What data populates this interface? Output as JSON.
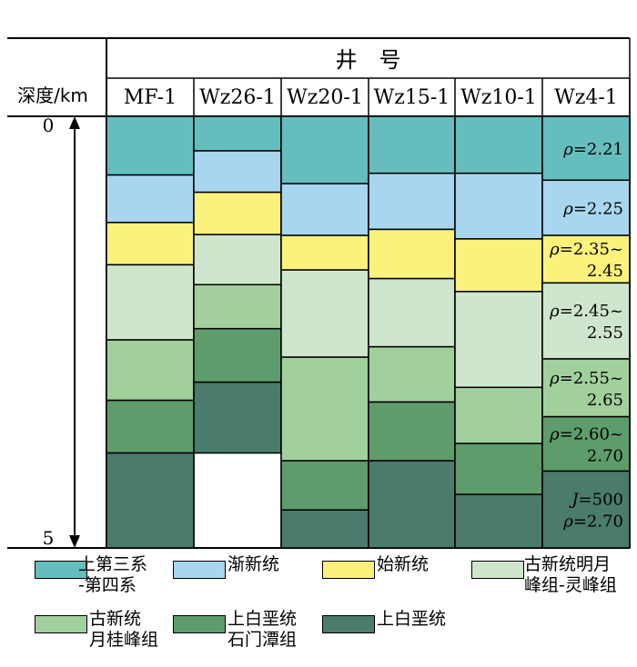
{
  "chart_data": {
    "type": "stacked-column",
    "header": "井　号",
    "depth_label": "深度/km",
    "y_ticks": [
      {
        "value": 0,
        "label": "0"
      },
      {
        "value": 5,
        "label": "5"
      }
    ],
    "ylim": [
      0,
      5
    ],
    "y_inverted": true,
    "units": [
      {
        "id": "u1",
        "name": "上第三系\n-第四系",
        "color": "#66bdbe"
      },
      {
        "id": "u2",
        "name": "渐新统",
        "color": "#a7d6ee"
      },
      {
        "id": "u3",
        "name": "始新统",
        "color": "#fbf27c"
      },
      {
        "id": "u4",
        "name": "古新统明月\n峰组-灵峰组",
        "color": "#d0e5cd"
      },
      {
        "id": "u5",
        "name": "古新统\n月桂峰组",
        "color": "#a1d09d"
      },
      {
        "id": "u6",
        "name": "上白垩统\n石门潭组",
        "color": "#5f9c6b"
      },
      {
        "id": "u7",
        "name": "上白垩统",
        "color": "#4a7b6d"
      }
    ],
    "wells": [
      {
        "name": "MF-1",
        "tops": [
          0,
          0.68,
          1.23,
          1.72,
          2.59,
          3.29,
          3.9
        ],
        "bottom": 5.0
      },
      {
        "name": "Wz26-1",
        "tops": [
          0,
          0.4,
          0.88,
          1.37,
          1.95,
          2.46,
          3.08
        ],
        "bottom": 3.9
      },
      {
        "name": "Wz20-1",
        "tops": [
          0,
          0.78,
          1.38,
          1.78,
          2.79,
          3.99,
          4.56
        ],
        "bottom": 5.0
      },
      {
        "name": "Wz15-1",
        "tops": [
          0,
          0.66,
          1.31,
          1.88,
          2.67,
          3.31,
          3.99
        ],
        "bottom": 5.0
      },
      {
        "name": "Wz10-1",
        "tops": [
          0,
          0.66,
          1.42,
          2.03,
          3.14,
          3.79,
          4.38
        ],
        "bottom": 5.0
      },
      {
        "name": "Wz4-1",
        "tops": [
          0,
          0.74,
          1.38,
          1.93,
          2.81,
          3.48,
          4.11
        ],
        "bottom": 5.0,
        "labels": [
          {
            "unit": 0,
            "lines": [
              "ρ=2.21"
            ]
          },
          {
            "unit": 1,
            "lines": [
              "ρ=2.25"
            ]
          },
          {
            "unit": 2,
            "lines": [
              "ρ=2.35~",
              "2.45"
            ]
          },
          {
            "unit": 3,
            "lines": [
              "ρ=2.45~",
              "2.55"
            ]
          },
          {
            "unit": 4,
            "lines": [
              "ρ=2.55~",
              "2.65"
            ]
          },
          {
            "unit": 5,
            "lines": [
              "ρ=2.60~",
              "2.70"
            ]
          },
          {
            "unit": 6,
            "lines": [
              "J=500",
              "ρ=2.70"
            ]
          }
        ]
      }
    ]
  }
}
